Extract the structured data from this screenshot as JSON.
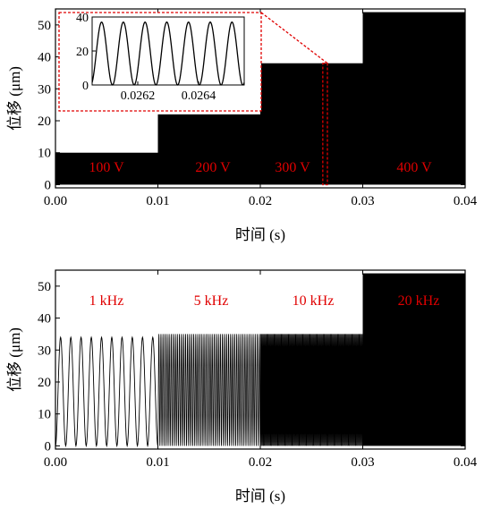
{
  "colors": {
    "signal": "#000000",
    "annotation": "#e00000",
    "zoom_box": "#e00000"
  },
  "chart_data": [
    {
      "type": "line",
      "xlabel": "时间 (s)",
      "ylabel": "位移 (μm)",
      "xlim": [
        0,
        0.04
      ],
      "ylim": [
        -1,
        55
      ],
      "xticks": [
        "0.00",
        "0.01",
        "0.02",
        "0.03",
        "0.04"
      ],
      "yticks": [
        "0",
        "10",
        "20",
        "30",
        "40",
        "50"
      ],
      "segments": [
        {
          "label": "100 V",
          "x_range": [
            0,
            0.01
          ],
          "amplitude_max": 10,
          "amplitude_min": 0
        },
        {
          "label": "200 V",
          "x_range": [
            0.01,
            0.02
          ],
          "amplitude_max": 22,
          "amplitude_min": 0
        },
        {
          "label": "300 V",
          "x_range": [
            0.02,
            0.03
          ],
          "amplitude_max": 38,
          "amplitude_min": 0
        },
        {
          "label": "400 V",
          "x_range": [
            0.03,
            0.04
          ],
          "amplitude_max": 54,
          "amplitude_min": 0
        }
      ],
      "zoom_region": {
        "x_range": [
          0.0261,
          0.02655
        ],
        "y_range": [
          0,
          38
        ]
      },
      "inset": {
        "type": "line",
        "xlim": [
          0.02605,
          0.02655
        ],
        "ylim": [
          0,
          40
        ],
        "xticks": [
          "0.0262",
          "0.0264"
        ],
        "yticks": [
          "0",
          "20",
          "40"
        ],
        "cycles": 7,
        "amplitude_min": 0,
        "amplitude_max": 37
      }
    },
    {
      "type": "line",
      "xlabel": "时间 (s)",
      "ylabel": "位移 (μm)",
      "xlim": [
        0,
        0.04
      ],
      "ylim": [
        -1,
        55
      ],
      "xticks": [
        "0.00",
        "0.01",
        "0.02",
        "0.03",
        "0.04"
      ],
      "yticks": [
        "0",
        "10",
        "20",
        "30",
        "40",
        "50"
      ],
      "segments": [
        {
          "label": "1 kHz",
          "x_range": [
            0,
            0.01
          ],
          "amplitude_max": 34,
          "amplitude_min": 0,
          "cycles": 10
        },
        {
          "label": "5 kHz",
          "x_range": [
            0.01,
            0.02
          ],
          "amplitude_max": 35,
          "amplitude_min": 0,
          "cycles": 50
        },
        {
          "label": "10 kHz",
          "x_range": [
            0.02,
            0.03
          ],
          "amplitude_max": 35,
          "amplitude_min": 0,
          "cycles": 100
        },
        {
          "label": "20 kHz",
          "x_range": [
            0.03,
            0.04
          ],
          "amplitude_max": 54,
          "amplitude_min": 0,
          "cycles": 200
        }
      ]
    }
  ]
}
